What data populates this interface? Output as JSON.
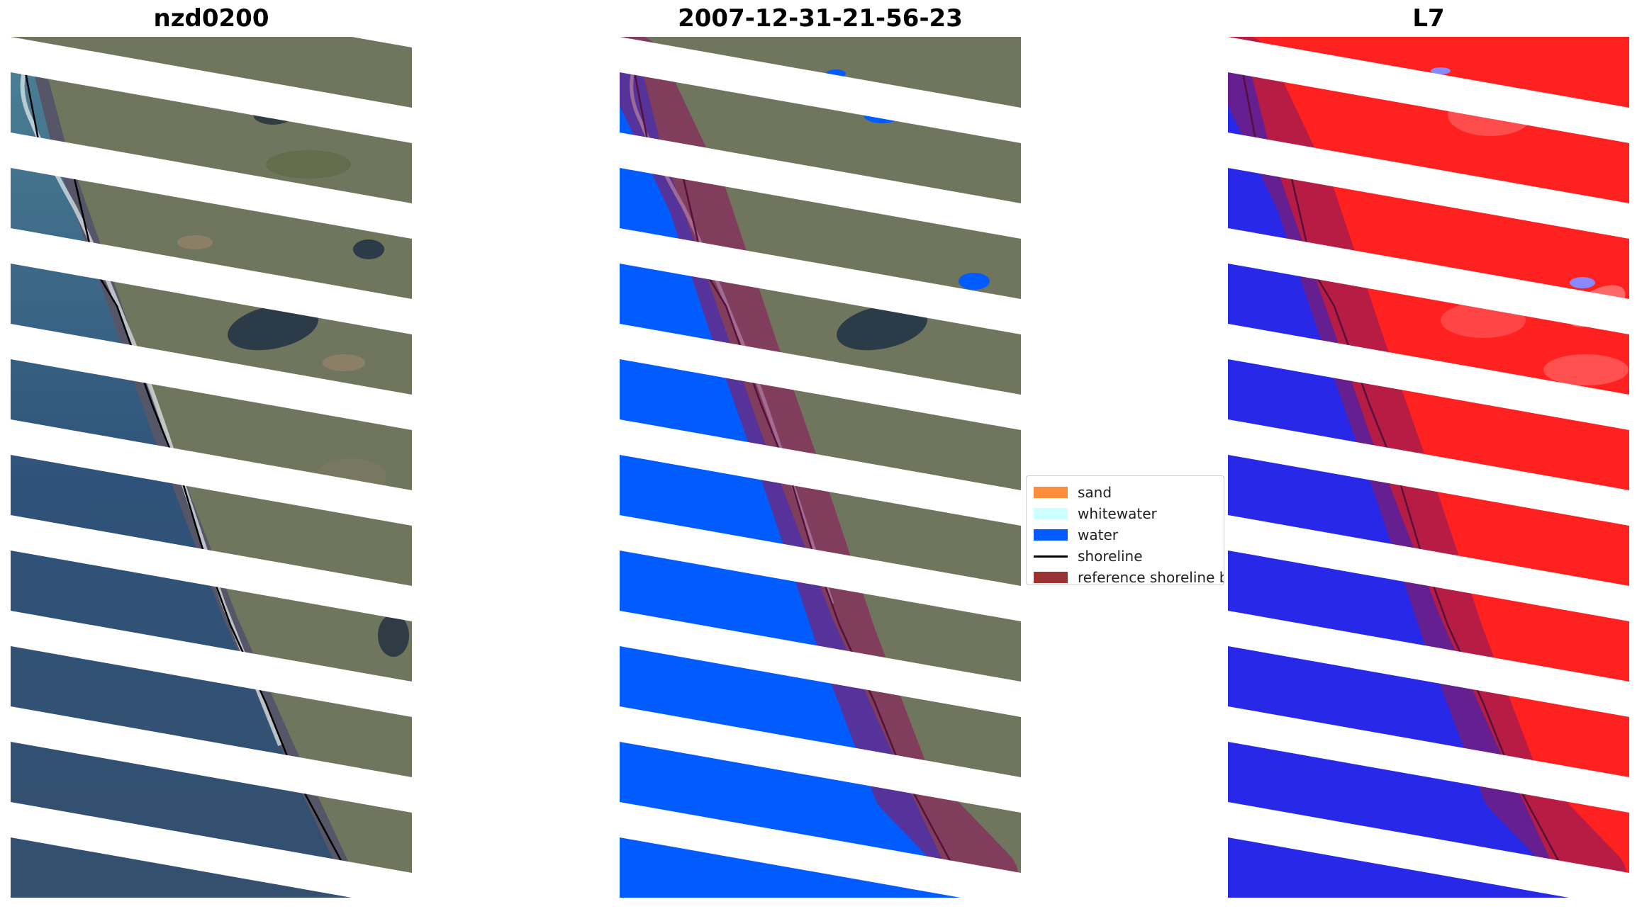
{
  "panels": [
    {
      "title": "nzd0200"
    },
    {
      "title": "2007-12-31-21-56-23"
    },
    {
      "title": "L7"
    }
  ],
  "legend": {
    "items": [
      {
        "label": "sand",
        "color": "#ff8c3a"
      },
      {
        "label": "whitewater",
        "color": "#ccffff"
      },
      {
        "label": "water",
        "color": "#005cff"
      },
      {
        "label": "shoreline",
        "color": "#000000"
      },
      {
        "label": "reference shoreline b",
        "color": "#993333"
      }
    ]
  },
  "colors": {
    "land_rgb": "#6b7359",
    "ocean_rgb": "#3a5a7a",
    "water_class": "#005cff",
    "index_land": "#ff2020",
    "index_water": "#2424e6",
    "buffer": "#8b1a5c"
  }
}
